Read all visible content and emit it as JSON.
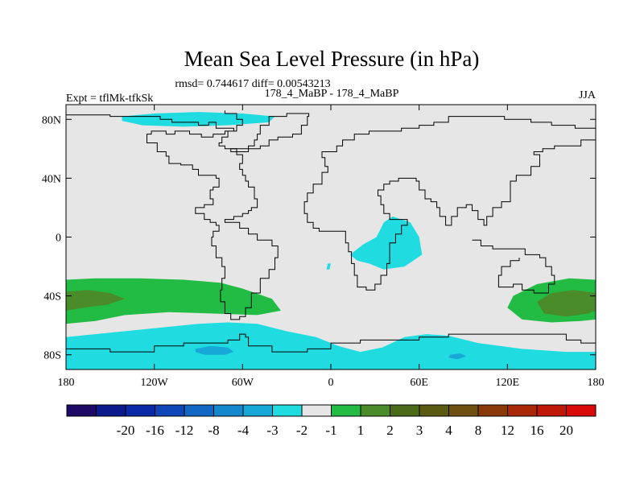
{
  "chart_data": {
    "type": "heatmap",
    "title": "Mean Sea Level Pressure (in hPa)",
    "stats_line": "rmsd= 0.744617 diff= 0.00543213",
    "left_label": "Expt = tflMk-tfkSk",
    "center_label": "178_4_MaBP - 178_4_MaBP",
    "right_label": "JJA",
    "projection": "cylindrical equidistant",
    "xlim": [
      -180,
      180
    ],
    "ylim": [
      -90,
      90
    ],
    "x_ticks": [
      {
        "value": -180,
        "label": "180"
      },
      {
        "value": -120,
        "label": "120W"
      },
      {
        "value": -60,
        "label": "60W"
      },
      {
        "value": 0,
        "label": "0"
      },
      {
        "value": 60,
        "label": "60E"
      },
      {
        "value": 120,
        "label": "120E"
      },
      {
        "value": 180,
        "label": "180"
      }
    ],
    "y_ticks": [
      {
        "value": 80,
        "label": "80N"
      },
      {
        "value": 40,
        "label": "40N"
      },
      {
        "value": 0,
        "label": "0"
      },
      {
        "value": -40,
        "label": "40S"
      },
      {
        "value": -80,
        "label": "80S"
      }
    ],
    "colorbar": {
      "colors": [
        "#1d0a66",
        "#0c1a8c",
        "#0a2aa8",
        "#0f46b8",
        "#1266c4",
        "#1488cc",
        "#18a8d8",
        "#20dce0",
        "#e6e6e6",
        "#22bb44",
        "#4a8c2a",
        "#4a6a1a",
        "#5a5a10",
        "#705010",
        "#8a3a08",
        "#a82808",
        "#c01808",
        "#d80a0a"
      ],
      "labels": [
        "-20",
        "-16",
        "-12",
        "-8",
        "-4",
        "-3",
        "-2",
        "-1",
        "1",
        "2",
        "3",
        "4",
        "8",
        "12",
        "16",
        "20"
      ]
    },
    "regions": [
      {
        "name": "arctic-low",
        "level": "-1 to -2",
        "color": "#20dce0",
        "points": [
          [
            -142,
            82
          ],
          [
            -120,
            84
          ],
          [
            -90,
            85
          ],
          [
            -60,
            84
          ],
          [
            -38,
            82
          ],
          [
            -42,
            78
          ],
          [
            -70,
            76
          ],
          [
            -100,
            75
          ],
          [
            -128,
            76
          ],
          [
            -142,
            79
          ]
        ]
      },
      {
        "name": "africa-low",
        "level": "-1 to -2",
        "color": "#20dce0",
        "points": [
          [
            13,
            -12
          ],
          [
            22,
            -5
          ],
          [
            31,
            0
          ],
          [
            36,
            10
          ],
          [
            42,
            14
          ],
          [
            54,
            10
          ],
          [
            60,
            0
          ],
          [
            62,
            -12
          ],
          [
            50,
            -20
          ],
          [
            36,
            -22
          ],
          [
            26,
            -18
          ],
          [
            18,
            -16
          ]
        ]
      },
      {
        "name": "atlantic-speck",
        "level": "-1 to -2",
        "color": "#20dce0",
        "points": [
          [
            -2,
            -18
          ],
          [
            0,
            -18
          ],
          [
            -1,
            -22
          ],
          [
            -3,
            -22
          ]
        ]
      },
      {
        "name": "southern-ocean-low",
        "level": "-1 to -2",
        "color": "#20dce0",
        "points": [
          [
            -180,
            -68
          ],
          [
            -150,
            -65
          ],
          [
            -120,
            -62
          ],
          [
            -90,
            -59
          ],
          [
            -70,
            -58
          ],
          [
            -50,
            -59
          ],
          [
            -30,
            -64
          ],
          [
            -10,
            -68
          ],
          [
            5,
            -74
          ],
          [
            20,
            -78
          ],
          [
            35,
            -75
          ],
          [
            50,
            -68
          ],
          [
            65,
            -66
          ],
          [
            80,
            -67
          ],
          [
            100,
            -72
          ],
          [
            130,
            -76
          ],
          [
            160,
            -78
          ],
          [
            180,
            -78
          ],
          [
            180,
            -90
          ],
          [
            -180,
            -90
          ]
        ]
      },
      {
        "name": "southern-ocean-low-core",
        "level": "-2 to -3",
        "color": "#18a8d8",
        "points": [
          [
            -92,
            -76
          ],
          [
            -82,
            -74
          ],
          [
            -70,
            -75
          ],
          [
            -66,
            -78
          ],
          [
            -72,
            -80
          ],
          [
            -86,
            -80
          ],
          [
            -92,
            -78
          ]
        ]
      },
      {
        "name": "southern-ocean-low-core-east",
        "level": "-2 to -3",
        "color": "#18a8d8",
        "points": [
          [
            81,
            -80
          ],
          [
            88,
            -79
          ],
          [
            92,
            -81
          ],
          [
            86,
            -83
          ],
          [
            80,
            -82
          ]
        ]
      },
      {
        "name": "pacific-high-west",
        "level": "1 to 2",
        "color": "#22bb44",
        "points": [
          [
            -180,
            -29
          ],
          [
            -160,
            -28
          ],
          [
            -130,
            -28
          ],
          [
            -100,
            -29
          ],
          [
            -75,
            -31
          ],
          [
            -60,
            -35
          ],
          [
            -40,
            -42
          ],
          [
            -34,
            -50
          ],
          [
            -50,
            -53
          ],
          [
            -80,
            -52
          ],
          [
            -110,
            -51
          ],
          [
            -140,
            -53
          ],
          [
            -160,
            -57
          ],
          [
            -180,
            -59
          ]
        ]
      },
      {
        "name": "pacific-high-east",
        "level": "1 to 2",
        "color": "#22bb44",
        "points": [
          [
            180,
            -29
          ],
          [
            162,
            -28
          ],
          [
            140,
            -32
          ],
          [
            124,
            -40
          ],
          [
            120,
            -48
          ],
          [
            130,
            -56
          ],
          [
            150,
            -58
          ],
          [
            170,
            -57
          ],
          [
            180,
            -56
          ]
        ]
      },
      {
        "name": "pacific-high-west-core",
        "level": "2 to 3",
        "color": "#4a8c2a",
        "points": [
          [
            -180,
            -37
          ],
          [
            -165,
            -36
          ],
          [
            -150,
            -38
          ],
          [
            -140,
            -42
          ],
          [
            -152,
            -46
          ],
          [
            -168,
            -48
          ],
          [
            -180,
            -50
          ]
        ]
      },
      {
        "name": "pacific-high-east-core",
        "level": "2 to 3",
        "color": "#4a8c2a",
        "points": [
          [
            180,
            -38
          ],
          [
            165,
            -36
          ],
          [
            150,
            -38
          ],
          [
            140,
            -44
          ],
          [
            145,
            -52
          ],
          [
            160,
            -54
          ],
          [
            175,
            -52
          ],
          [
            180,
            -50
          ]
        ]
      }
    ],
    "coastlines": [
      [
        [
          -180,
          83
        ],
        [
          -165,
          83
        ],
        [
          -150,
          82
        ],
        [
          -132,
          82
        ],
        [
          -120,
          82
        ],
        [
          -116,
          80
        ],
        [
          -110,
          80
        ],
        [
          -108,
          78
        ],
        [
          -100,
          78
        ],
        [
          -90,
          76
        ],
        [
          -83,
          78
        ],
        [
          -78,
          74
        ],
        [
          -70,
          74
        ],
        [
          -66,
          72
        ],
        [
          -72,
          70
        ],
        [
          -80,
          68
        ],
        [
          -88,
          70
        ],
        [
          -96,
          72
        ],
        [
          -106,
          70
        ],
        [
          -112,
          72
        ],
        [
          -122,
          70
        ],
        [
          -125,
          64
        ],
        [
          -118,
          58
        ],
        [
          -112,
          55
        ],
        [
          -110,
          50
        ],
        [
          -102,
          49
        ],
        [
          -94,
          46
        ],
        [
          -90,
          42
        ],
        [
          -82,
          42
        ],
        [
          -78,
          40
        ],
        [
          -76,
          34
        ],
        [
          -80,
          32
        ],
        [
          -82,
          26
        ],
        [
          -80,
          22
        ],
        [
          -86,
          20
        ],
        [
          -92,
          16
        ],
        [
          -86,
          12
        ],
        [
          -82,
          10
        ],
        [
          -78,
          8
        ],
        [
          -76,
          4
        ],
        [
          -80,
          0
        ],
        [
          -81,
          -6
        ],
        [
          -78,
          -14
        ],
        [
          -74,
          -20
        ],
        [
          -72,
          -28
        ],
        [
          -74,
          -36
        ],
        [
          -75,
          -44
        ],
        [
          -72,
          -52
        ],
        [
          -68,
          -56
        ],
        [
          -62,
          -54
        ],
        [
          -58,
          -48
        ],
        [
          -54,
          -38
        ],
        [
          -48,
          -28
        ],
        [
          -42,
          -22
        ],
        [
          -38,
          -14
        ],
        [
          -36,
          -6
        ],
        [
          -40,
          -2
        ],
        [
          -50,
          2
        ],
        [
          -56,
          6
        ],
        [
          -62,
          10
        ],
        [
          -72,
          12
        ],
        [
          -66,
          14
        ],
        [
          -60,
          16
        ],
        [
          -56,
          18
        ],
        [
          -54,
          20
        ],
        [
          -50,
          26
        ],
        [
          -52,
          34
        ],
        [
          -56,
          38
        ],
        [
          -58,
          42
        ],
        [
          -60,
          46
        ],
        [
          -62,
          50
        ],
        [
          -60,
          56
        ],
        [
          -64,
          60
        ],
        [
          -72,
          62
        ],
        [
          -76,
          64
        ],
        [
          -74,
          68
        ],
        [
          -70,
          72
        ],
        [
          -64,
          76
        ],
        [
          -60,
          80
        ],
        [
          -64,
          84
        ],
        [
          -72,
          86
        ]
      ],
      [
        [
          -68,
          60
        ],
        [
          -56,
          62
        ],
        [
          -52,
          66
        ],
        [
          -50,
          70
        ],
        [
          -48,
          76
        ],
        [
          -42,
          82
        ],
        [
          -30,
          84
        ],
        [
          -20,
          84
        ],
        [
          -15,
          82
        ],
        [
          -16,
          76
        ],
        [
          -20,
          70
        ],
        [
          -26,
          68
        ],
        [
          -36,
          66
        ],
        [
          -42,
          62
        ],
        [
          -48,
          60
        ],
        [
          -56,
          58
        ],
        [
          -68,
          60
        ]
      ],
      [
        [
          -8,
          36
        ],
        [
          -6,
          44
        ],
        [
          -2,
          48
        ],
        [
          -4,
          54
        ],
        [
          -6,
          58
        ],
        [
          4,
          62
        ],
        [
          8,
          66
        ],
        [
          16,
          70
        ],
        [
          26,
          72
        ],
        [
          36,
          72
        ],
        [
          48,
          74
        ],
        [
          60,
          76
        ],
        [
          70,
          78
        ],
        [
          80,
          82
        ],
        [
          100,
          82
        ],
        [
          118,
          80
        ],
        [
          136,
          78
        ],
        [
          150,
          76
        ],
        [
          166,
          74
        ],
        [
          180,
          72
        ]
      ],
      [
        [
          -8,
          36
        ],
        [
          -12,
          30
        ],
        [
          -16,
          24
        ],
        [
          -18,
          16
        ],
        [
          -16,
          10
        ],
        [
          -12,
          6
        ],
        [
          -8,
          4
        ],
        [
          -2,
          4
        ],
        [
          6,
          4
        ],
        [
          10,
          2
        ],
        [
          10,
          -4
        ],
        [
          12,
          -10
        ],
        [
          14,
          -18
        ],
        [
          16,
          -26
        ],
        [
          18,
          -34
        ],
        [
          24,
          -36
        ],
        [
          30,
          -32
        ],
        [
          34,
          -26
        ],
        [
          38,
          -18
        ],
        [
          40,
          -12
        ],
        [
          40,
          -4
        ],
        [
          44,
          2
        ],
        [
          48,
          8
        ],
        [
          52,
          12
        ],
        [
          44,
          12
        ],
        [
          40,
          16
        ],
        [
          36,
          22
        ],
        [
          34,
          28
        ],
        [
          32,
          32
        ],
        [
          36,
          36
        ],
        [
          40,
          38
        ],
        [
          46,
          40
        ],
        [
          52,
          40
        ],
        [
          58,
          38
        ],
        [
          60,
          32
        ],
        [
          64,
          26
        ],
        [
          68,
          24
        ],
        [
          72,
          20
        ],
        [
          74,
          14
        ],
        [
          78,
          8
        ],
        [
          82,
          14
        ],
        [
          86,
          20
        ],
        [
          92,
          22
        ],
        [
          96,
          18
        ],
        [
          100,
          12
        ],
        [
          104,
          8
        ],
        [
          106,
          14
        ],
        [
          110,
          20
        ],
        [
          116,
          24
        ],
        [
          122,
          30
        ],
        [
          122,
          38
        ],
        [
          126,
          42
        ],
        [
          130,
          42
        ],
        [
          136,
          48
        ],
        [
          142,
          52
        ],
        [
          142,
          56
        ],
        [
          138,
          58
        ],
        [
          144,
          60
        ],
        [
          152,
          62
        ],
        [
          162,
          62
        ],
        [
          170,
          66
        ],
        [
          180,
          66
        ]
      ],
      [
        [
          96,
          -2
        ],
        [
          102,
          -6
        ],
        [
          110,
          -8
        ],
        [
          118,
          -8
        ],
        [
          128,
          -8
        ],
        [
          132,
          -12
        ],
        [
          138,
          -12
        ],
        [
          142,
          -14
        ],
        [
          146,
          -20
        ],
        [
          150,
          -26
        ],
        [
          152,
          -32
        ],
        [
          148,
          -38
        ],
        [
          144,
          -38
        ],
        [
          138,
          -36
        ],
        [
          130,
          -32
        ],
        [
          124,
          -34
        ],
        [
          116,
          -34
        ],
        [
          114,
          -26
        ],
        [
          116,
          -20
        ],
        [
          122,
          -16
        ],
        [
          128,
          -14
        ]
      ],
      [
        [
          -180,
          -76
        ],
        [
          -150,
          -78
        ],
        [
          -120,
          -74
        ],
        [
          -100,
          -72
        ],
        [
          -80,
          -72
        ],
        [
          -70,
          -70
        ],
        [
          -62,
          -66
        ],
        [
          -58,
          -68
        ],
        [
          -56,
          -74
        ],
        [
          -40,
          -78
        ],
        [
          -30,
          -78
        ],
        [
          -16,
          -76
        ],
        [
          0,
          -72
        ],
        [
          20,
          -70
        ],
        [
          40,
          -70
        ],
        [
          60,
          -68
        ],
        [
          80,
          -66
        ],
        [
          100,
          -66
        ],
        [
          120,
          -66
        ],
        [
          140,
          -66
        ],
        [
          160,
          -70
        ],
        [
          170,
          -72
        ],
        [
          180,
          -76
        ]
      ]
    ]
  }
}
